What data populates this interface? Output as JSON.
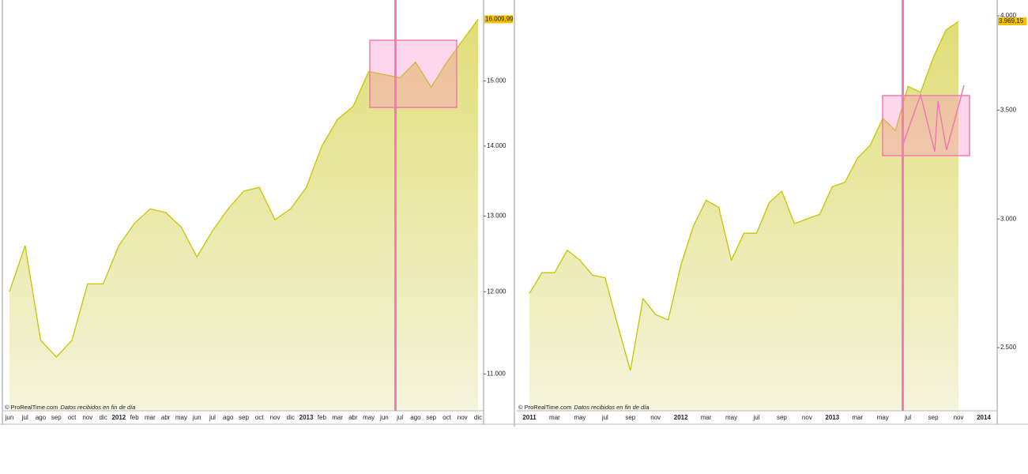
{
  "chart_data": [
    {
      "type": "area",
      "log_scale": true,
      "color": "#c8c400",
      "fill_top": "#e0de78",
      "fill_bottom": "#f5f4dc",
      "categories": [
        "jun",
        "jul",
        "ago",
        "sep",
        "oct",
        "nov",
        "dic",
        "2012",
        "feb",
        "mar",
        "abr",
        "may",
        "jun",
        "jul",
        "ago",
        "sep",
        "oct",
        "nov",
        "dic",
        "2013",
        "feb",
        "mar",
        "abr",
        "may",
        "jun",
        "jul",
        "ago",
        "sep",
        "oct",
        "nov",
        "dic"
      ],
      "values": [
        12000,
        12600,
        11400,
        11200,
        11400,
        12100,
        12100,
        12600,
        12900,
        13100,
        13050,
        12850,
        12450,
        12800,
        13100,
        13350,
        13400,
        12950,
        13100,
        13400,
        14000,
        14400,
        14600,
        15150,
        15100,
        15050,
        15300,
        14900,
        15300,
        15650,
        16009.99
      ],
      "ylim": [
        10580,
        16340
      ],
      "yticks": [
        {
          "value": 11000,
          "label": "11.000"
        },
        {
          "value": 12000,
          "label": "12.000"
        },
        {
          "value": 13000,
          "label": "13.000"
        },
        {
          "value": 14000,
          "label": "14.000"
        },
        {
          "value": 15000,
          "label": "15.000"
        }
      ],
      "last_price": {
        "value": 16009.99,
        "label": "16.009,99"
      },
      "source": "© ProRealTime.com",
      "source_note": "Datos recibidos en fin de día"
    },
    {
      "type": "area",
      "log_scale": true,
      "color": "#c8c400",
      "fill_top": "#e0de78",
      "fill_bottom": "#f5f4dc",
      "categories": [
        "2011",
        null,
        "mar",
        null,
        "may",
        null,
        "jul",
        null,
        "sep",
        null,
        "nov",
        null,
        "2012",
        null,
        "mar",
        null,
        "may",
        null,
        "jul",
        null,
        "sep",
        null,
        "nov",
        null,
        "2013",
        null,
        "mar",
        null,
        "may",
        null,
        "jul",
        null,
        "sep",
        null,
        "nov",
        null,
        "2014"
      ],
      "values": [
        2700,
        2780,
        2780,
        2870,
        2830,
        2770,
        2760,
        2580,
        2420,
        2680,
        2620,
        2600,
        2810,
        2970,
        3080,
        3050,
        2830,
        2940,
        2940,
        3070,
        3120,
        2980,
        3000,
        3020,
        3140,
        3160,
        3270,
        3330,
        3460,
        3400,
        3620,
        3590,
        3770,
        3920,
        3969.15,
        null,
        null
      ],
      "ylim": [
        2286,
        4091
      ],
      "yticks": [
        {
          "value": 2500,
          "label": "2.500"
        },
        {
          "value": 3000,
          "label": "3.000"
        },
        {
          "value": 3500,
          "label": "3.500"
        },
        {
          "value": 4000,
          "label": "4.000"
        }
      ],
      "last_price": {
        "value": 3969.15,
        "label": "3.969,15"
      },
      "source": "© ProRealTime.com",
      "source_note": "Datos recibidos en fin de día"
    }
  ]
}
